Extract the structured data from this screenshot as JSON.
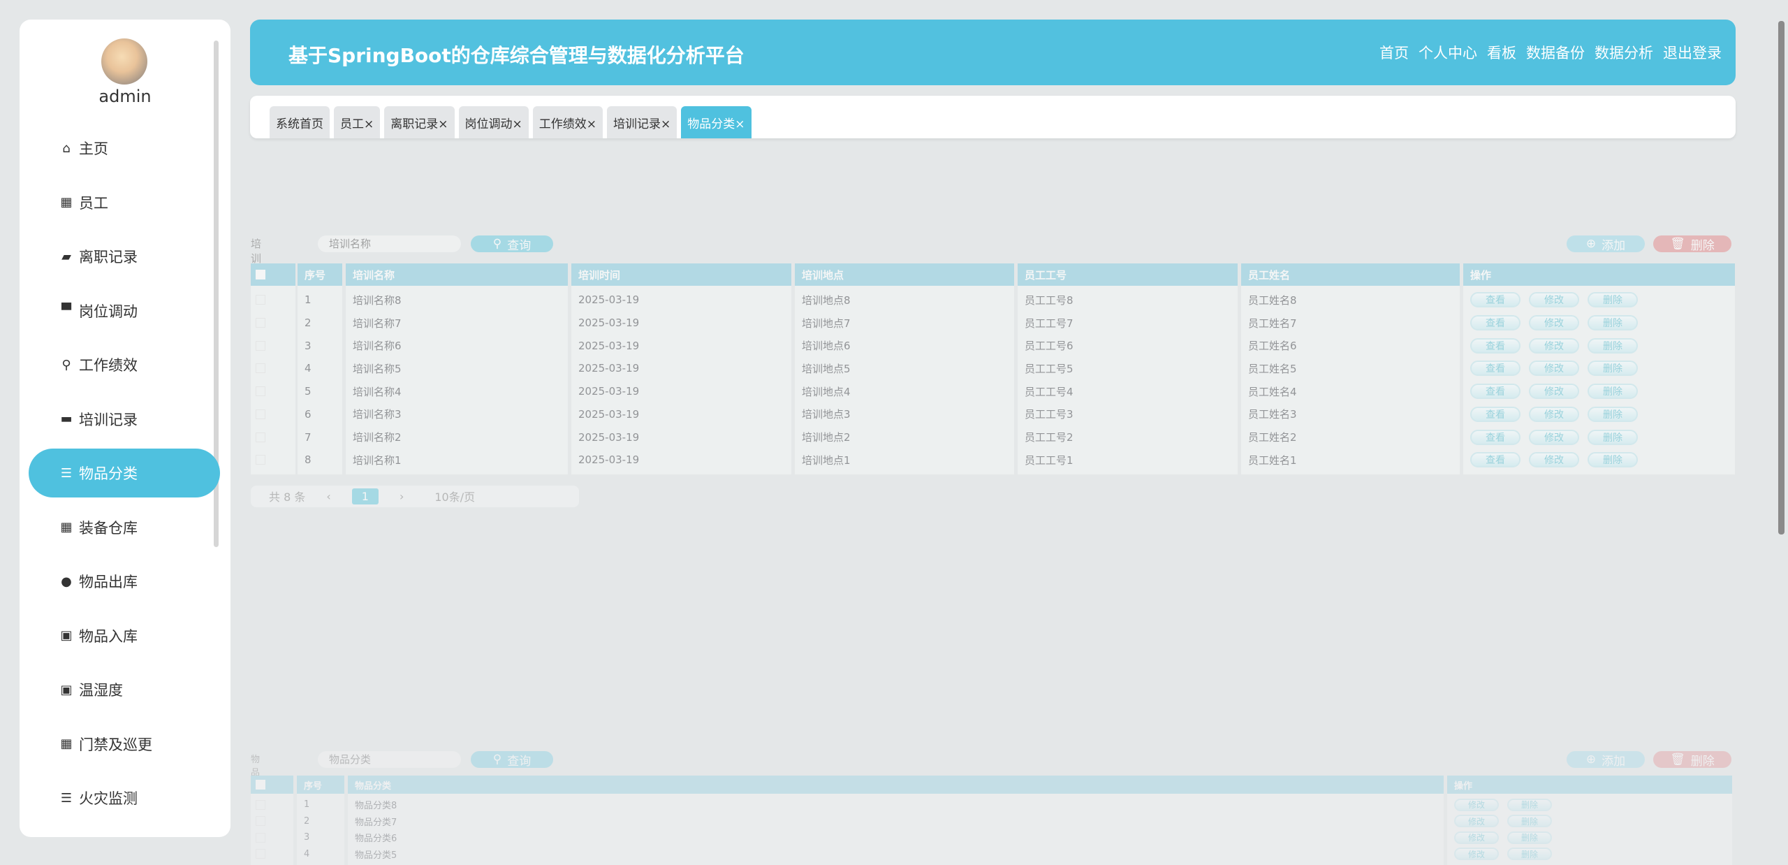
{
  "sidebar": {
    "username": "admin",
    "items": [
      {
        "label": "主页",
        "icon": "home-icon",
        "glyph": "⌂"
      },
      {
        "label": "员工",
        "icon": "grid-icon",
        "glyph": "▦"
      },
      {
        "label": "离职记录",
        "icon": "wallet-icon",
        "glyph": "▰"
      },
      {
        "label": "岗位调动",
        "icon": "monitor-icon",
        "glyph": "▀"
      },
      {
        "label": "工作绩效",
        "icon": "user-icon",
        "glyph": "⚲"
      },
      {
        "label": "培训记录",
        "icon": "monitor-icon",
        "glyph": "▬"
      },
      {
        "label": "物品分类",
        "icon": "sliders-icon",
        "glyph": "☰",
        "active": true
      },
      {
        "label": "装备仓库",
        "icon": "grid-icon",
        "glyph": "▦"
      },
      {
        "label": "物品出库",
        "icon": "bulb-icon",
        "glyph": "●"
      },
      {
        "label": "物品入库",
        "icon": "clipboard-check-icon",
        "glyph": "▣"
      },
      {
        "label": "温湿度",
        "icon": "clipboard-x-icon",
        "glyph": "▣"
      },
      {
        "label": "门禁及巡更",
        "icon": "grid-icon",
        "glyph": "▦"
      },
      {
        "label": "火灾监测",
        "icon": "list-icon",
        "glyph": "☰"
      }
    ]
  },
  "header": {
    "title": "基于SpringBoot的仓库综合管理与数据化分析平台",
    "nav": [
      "首页",
      "个人中心",
      "看板",
      "数据备份",
      "数据分析",
      "退出登录"
    ]
  },
  "tabs": [
    {
      "label": "系统首页"
    },
    {
      "label": "员工×"
    },
    {
      "label": "离职记录×"
    },
    {
      "label": "岗位调动×"
    },
    {
      "label": "工作绩效×"
    },
    {
      "label": "培训记录×"
    },
    {
      "label": "物品分类×",
      "active": true
    }
  ],
  "colors": {
    "accent": "#4fc1df",
    "header": "#52c1df",
    "danger": "#e49a9c",
    "table_header": "#93d1e3"
  },
  "training": {
    "search_label": "培训名称",
    "search_placeholder": "培训名称",
    "query": "查询",
    "add": "添加",
    "delete": "删除",
    "columns": [
      "序号",
      "培训名称",
      "培训时间",
      "培训地点",
      "员工工号",
      "员工姓名",
      "操作"
    ],
    "rows": [
      [
        "1",
        "培训名称8",
        "2025-03-19",
        "培训地点8",
        "员工工号8",
        "员工姓名8"
      ],
      [
        "2",
        "培训名称7",
        "2025-03-19",
        "培训地点7",
        "员工工号7",
        "员工姓名7"
      ],
      [
        "3",
        "培训名称6",
        "2025-03-19",
        "培训地点6",
        "员工工号6",
        "员工姓名6"
      ],
      [
        "4",
        "培训名称5",
        "2025-03-19",
        "培训地点5",
        "员工工号5",
        "员工姓名5"
      ],
      [
        "5",
        "培训名称4",
        "2025-03-19",
        "培训地点4",
        "员工工号4",
        "员工姓名4"
      ],
      [
        "6",
        "培训名称3",
        "2025-03-19",
        "培训地点3",
        "员工工号3",
        "员工姓名3"
      ],
      [
        "7",
        "培训名称2",
        "2025-03-19",
        "培训地点2",
        "员工工号2",
        "员工姓名2"
      ],
      [
        "8",
        "培训名称1",
        "2025-03-19",
        "培训地点1",
        "员工工号1",
        "员工姓名1"
      ]
    ],
    "actions": [
      "查看",
      "修改",
      "删除"
    ],
    "pagination": {
      "total": "共 8 条",
      "page": "1",
      "page_size": "10条/页"
    }
  },
  "category": {
    "search_label": "物品分类",
    "search_placeholder": "物品分类",
    "query": "查询",
    "add": "添加",
    "delete": "删除",
    "columns": [
      "序号",
      "物品分类",
      "操作"
    ],
    "rows": [
      [
        "1",
        "物品分类8"
      ],
      [
        "2",
        "物品分类7"
      ],
      [
        "3",
        "物品分类6"
      ],
      [
        "4",
        "物品分类5"
      ]
    ],
    "actions": [
      "修改",
      "删除"
    ]
  }
}
